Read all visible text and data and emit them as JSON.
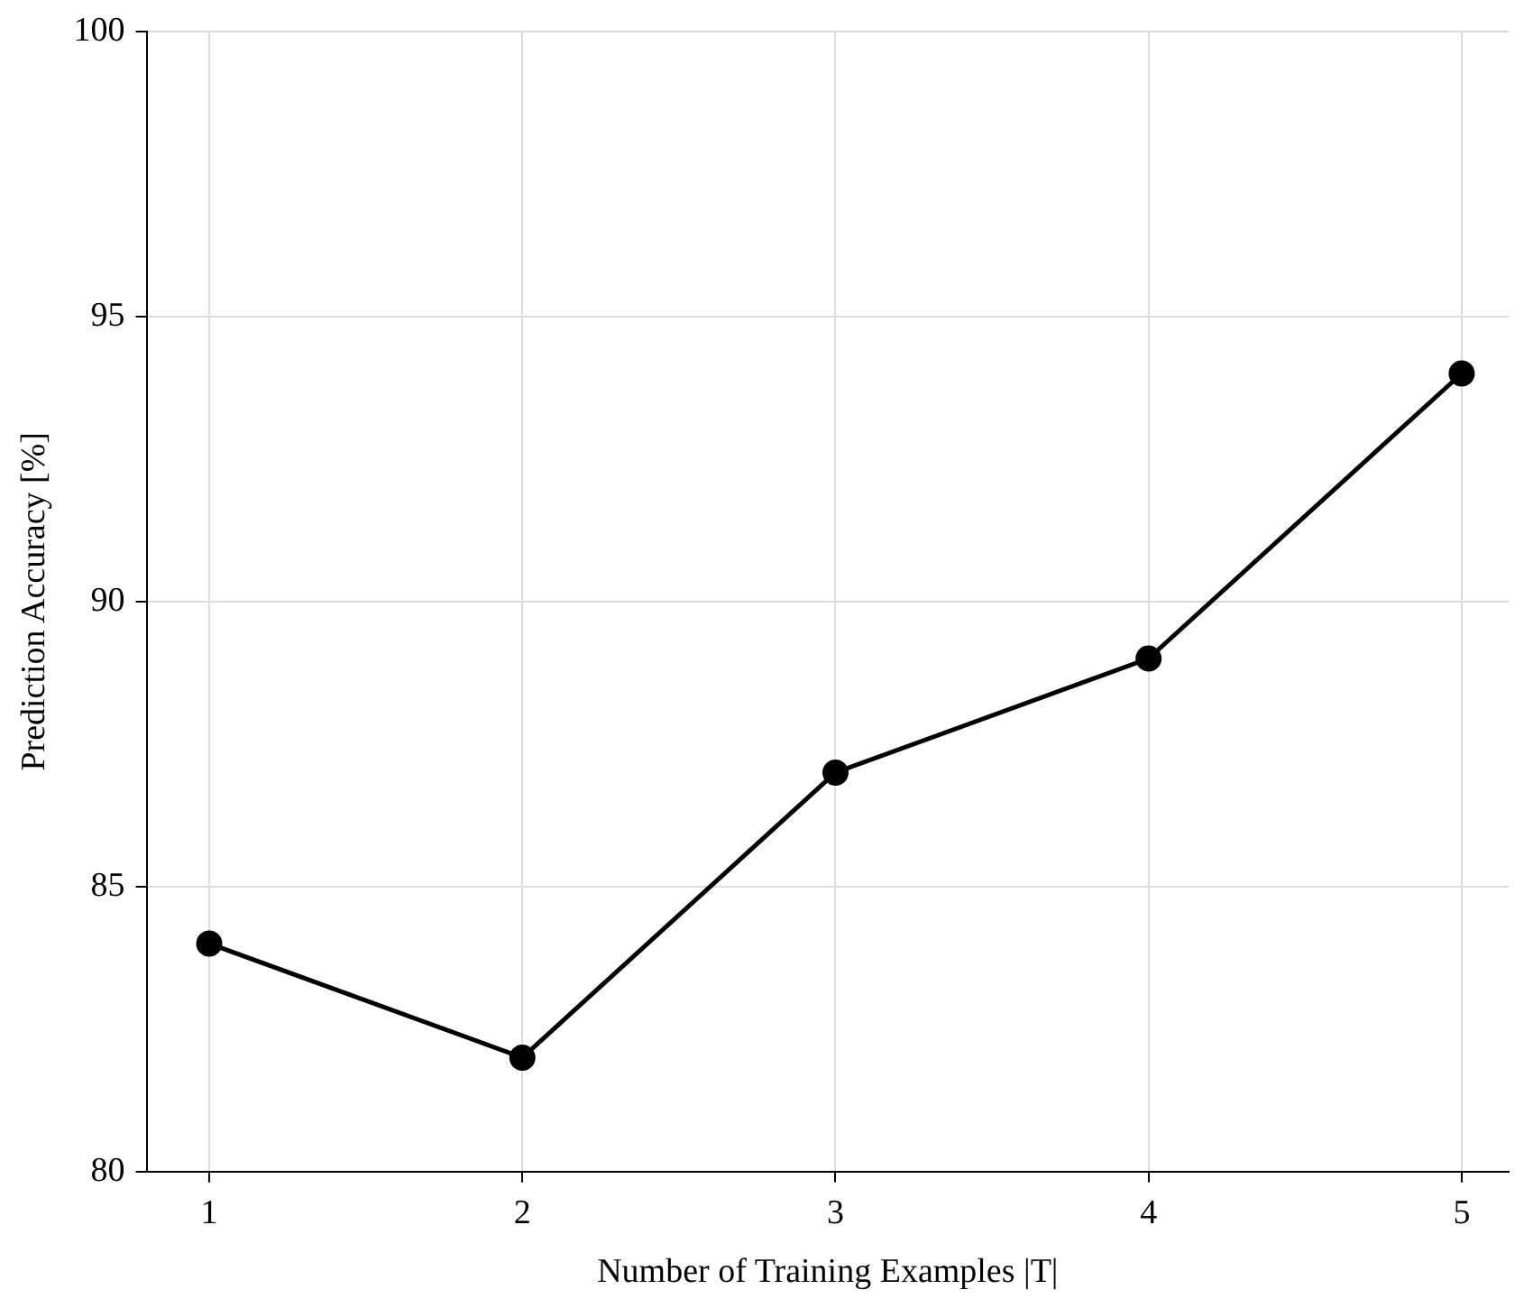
{
  "chart_data": {
    "type": "line",
    "xlabel": "Number of Training Examples |T|",
    "ylabel": "Prediction Accuracy [%]",
    "x": [
      1,
      2,
      3,
      4,
      5
    ],
    "series": [
      {
        "color": "#000000",
        "values": [
          84,
          82,
          87,
          89,
          94
        ]
      }
    ],
    "xlim": [
      0.8,
      5.15
    ],
    "xticks": [
      1,
      2,
      3,
      4,
      5
    ],
    "ylim": [
      80,
      100
    ],
    "yticks": [
      80,
      85,
      90,
      95,
      100
    ],
    "grid": true,
    "legend": false,
    "marker": "circle",
    "line_style": "solid"
  }
}
